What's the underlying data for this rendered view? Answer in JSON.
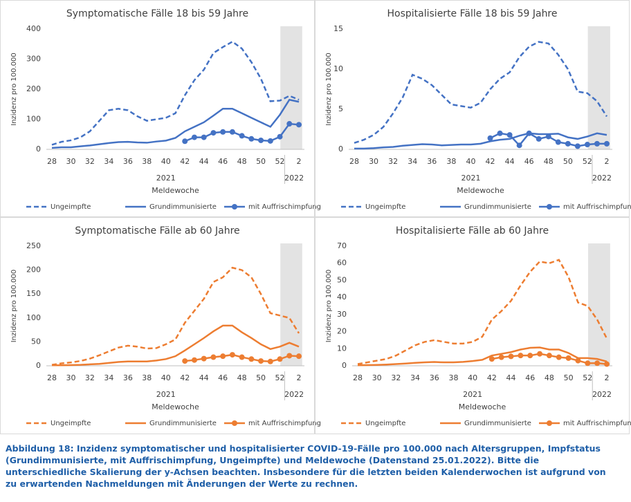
{
  "chart_data": [
    {
      "type": "line",
      "title": "Symptomatische Fälle 18 bis 59 Jahre",
      "y_label": "Inzidenz pro 100.000",
      "x_label": "Meldewoche",
      "year_labels": [
        "2021",
        "2022"
      ],
      "grid": false,
      "categories": [
        "28",
        null,
        "30",
        null,
        "32",
        null,
        "34",
        null,
        "36",
        null,
        "38",
        null,
        "40",
        null,
        "42",
        null,
        "44",
        null,
        "46",
        null,
        "48",
        null,
        "50",
        null,
        "52",
        null,
        "2"
      ],
      "ylim": [
        0,
        400
      ],
      "yticks": [
        0,
        100,
        200,
        300,
        400
      ],
      "series": [
        {
          "name": "Ungeimpfte",
          "color": "#4472c4",
          "line_style": "dashed",
          "values": [
            15,
            25,
            30,
            40,
            60,
            95,
            130,
            135,
            130,
            110,
            95,
            100,
            105,
            120,
            180,
            230,
            265,
            320,
            340,
            358,
            335,
            290,
            235,
            160,
            162,
            178,
            165
          ]
        },
        {
          "name": "Grundimmunisierte",
          "color": "#4472c4",
          "line_style": "solid",
          "values": [
            5,
            7,
            7,
            10,
            13,
            17,
            21,
            24,
            25,
            23,
            22,
            26,
            29,
            38,
            60,
            75,
            90,
            112,
            135,
            135,
            120,
            105,
            90,
            75,
            115,
            165,
            158
          ]
        },
        {
          "name": "mit Auffrischimpfung",
          "color": "#4472c4",
          "line_style": "solid",
          "marker": "circle",
          "values": [
            null,
            null,
            null,
            null,
            null,
            null,
            null,
            null,
            null,
            null,
            null,
            null,
            null,
            null,
            27,
            40,
            40,
            55,
            58,
            58,
            45,
            35,
            30,
            28,
            42,
            85,
            82
          ]
        }
      ]
    },
    {
      "type": "line",
      "title": "Hospitalisierte Fälle 18 bis 59 Jahre",
      "y_label": "Inzidenz pro 100.000",
      "x_label": "Meldewoche",
      "year_labels": [
        "2021",
        "2022"
      ],
      "grid": false,
      "categories": [
        "28",
        null,
        "30",
        null,
        "32",
        null,
        "34",
        null,
        "36",
        null,
        "38",
        null,
        "40",
        null,
        "42",
        null,
        "44",
        null,
        "46",
        null,
        "48",
        null,
        "50",
        null,
        "52",
        null,
        "2"
      ],
      "ylim": [
        0,
        15
      ],
      "yticks": [
        0,
        5,
        10,
        15
      ],
      "series": [
        {
          "name": "Ungeimpfte",
          "color": "#4472c4",
          "line_style": "dashed",
          "values": [
            0.8,
            1.2,
            1.8,
            2.8,
            4.5,
            6.5,
            9.3,
            8.8,
            8,
            6.8,
            5.6,
            5.4,
            5.2,
            5.8,
            7.5,
            8.8,
            9.6,
            11.5,
            12.8,
            13.4,
            13.2,
            11.8,
            10,
            7.2,
            7,
            6,
            4.1
          ]
        },
        {
          "name": "Grundimmunisierte",
          "color": "#4472c4",
          "line_style": "solid",
          "values": [
            0.1,
            0.1,
            0.15,
            0.25,
            0.3,
            0.45,
            0.55,
            0.65,
            0.6,
            0.5,
            0.55,
            0.6,
            0.6,
            0.7,
            1.0,
            1.2,
            1.3,
            1.7,
            2.0,
            1.9,
            1.9,
            1.95,
            1.5,
            1.3,
            1.6,
            2.0,
            1.8
          ]
        },
        {
          "name": "mit Auffrischimpfung",
          "color": "#4472c4",
          "line_style": "solid",
          "marker": "circle",
          "values": [
            null,
            null,
            null,
            null,
            null,
            null,
            null,
            null,
            null,
            null,
            null,
            null,
            null,
            null,
            1.4,
            2.0,
            1.8,
            0.5,
            2.0,
            1.3,
            1.6,
            0.9,
            0.7,
            0.4,
            0.6,
            0.7,
            0.7
          ]
        }
      ]
    },
    {
      "type": "line",
      "title": "Symptomatische Fälle ab 60 Jahre",
      "y_label": "Inzidenz pro 100.000",
      "x_label": "Meldewoche",
      "year_labels": [
        "2021",
        "2022"
      ],
      "grid": false,
      "categories": [
        "28",
        null,
        "30",
        null,
        "32",
        null,
        "34",
        null,
        "36",
        null,
        "38",
        null,
        "40",
        null,
        "42",
        null,
        "44",
        null,
        "46",
        null,
        "48",
        null,
        "50",
        null,
        "52",
        null,
        "2"
      ],
      "ylim": [
        0,
        250
      ],
      "yticks": [
        0,
        50,
        100,
        150,
        200,
        250
      ],
      "series": [
        {
          "name": "Ungeimpfte",
          "color": "#ed7d31",
          "line_style": "dashed",
          "values": [
            2,
            5,
            7,
            10,
            15,
            22,
            30,
            38,
            42,
            40,
            36,
            37,
            45,
            55,
            90,
            115,
            140,
            175,
            185,
            205,
            200,
            185,
            150,
            110,
            105,
            100,
            68
          ]
        },
        {
          "name": "Grundimmunisierte",
          "color": "#ed7d31",
          "line_style": "solid",
          "values": [
            1,
            1,
            1.5,
            2,
            3,
            4,
            6,
            8,
            9,
            9,
            9,
            11,
            14,
            20,
            32,
            45,
            58,
            72,
            84,
            84,
            70,
            58,
            45,
            35,
            40,
            48,
            40
          ]
        },
        {
          "name": "mit Auffrischimpfung",
          "color": "#ed7d31",
          "line_style": "solid",
          "marker": "circle",
          "values": [
            null,
            null,
            null,
            null,
            null,
            null,
            null,
            null,
            null,
            null,
            null,
            null,
            null,
            null,
            10,
            12,
            15,
            18,
            20,
            23,
            18,
            14,
            10,
            9,
            14,
            21,
            20
          ]
        }
      ]
    },
    {
      "type": "line",
      "title": "Hospitalisierte Fälle ab 60 Jahre",
      "y_label": "Inzidenz pro 100.000",
      "x_label": "Meldewoche",
      "year_labels": [
        "2021",
        "2022"
      ],
      "grid": false,
      "categories": [
        "28",
        null,
        "30",
        null,
        "32",
        null,
        "34",
        null,
        "36",
        null,
        "38",
        null,
        "40",
        null,
        "42",
        null,
        "44",
        null,
        "46",
        null,
        "48",
        null,
        "50",
        null,
        "52",
        null,
        "2"
      ],
      "ylim": [
        0,
        70
      ],
      "yticks": [
        0,
        10,
        20,
        30,
        40,
        50,
        60,
        70
      ],
      "series": [
        {
          "name": "Ungeimpfte",
          "color": "#ed7d31",
          "line_style": "dashed",
          "values": [
            1,
            2,
            3,
            4,
            6,
            9,
            12,
            14,
            15,
            14,
            13,
            13,
            14,
            17,
            27,
            32,
            38,
            47,
            55,
            61,
            60,
            62,
            52,
            37,
            35,
            27,
            16
          ]
        },
        {
          "name": "Grundimmunisierte",
          "color": "#ed7d31",
          "line_style": "solid",
          "values": [
            0.3,
            0.4,
            0.5,
            0.7,
            1,
            1.3,
            1.7,
            2,
            2.2,
            2,
            2,
            2.3,
            2.8,
            3.5,
            6,
            7,
            8,
            9.5,
            10.5,
            10.7,
            9.5,
            9.5,
            7.5,
            4.5,
            4.5,
            4,
            2.5
          ]
        },
        {
          "name": "mit Auffrischimpfung",
          "color": "#ed7d31",
          "line_style": "solid",
          "marker": "circle",
          "values": [
            null,
            null,
            null,
            null,
            null,
            null,
            null,
            null,
            null,
            null,
            null,
            null,
            null,
            null,
            4,
            5,
            5.5,
            6,
            6,
            7,
            6,
            5,
            4.5,
            3,
            1.5,
            1.5,
            1
          ]
        }
      ]
    }
  ],
  "caption": "Abbildung 18: Inzidenz symptomatischer und hospitalisierter COVID-19-Fälle pro 100.000 nach Altersgruppen, Impfstatus (Grundimmunisierte, mit Auffrischimpfung, Ungeimpfte) und Meldewoche (Datenstand 25.01.2022). Bitte die unterschiedliche Skalierung der y-Achsen beachten. Insbesondere für die letzten beiden Kalenderwochen ist aufgrund von zu erwartenden Nachmeldungen mit Änderungen der Werte zu rechnen."
}
